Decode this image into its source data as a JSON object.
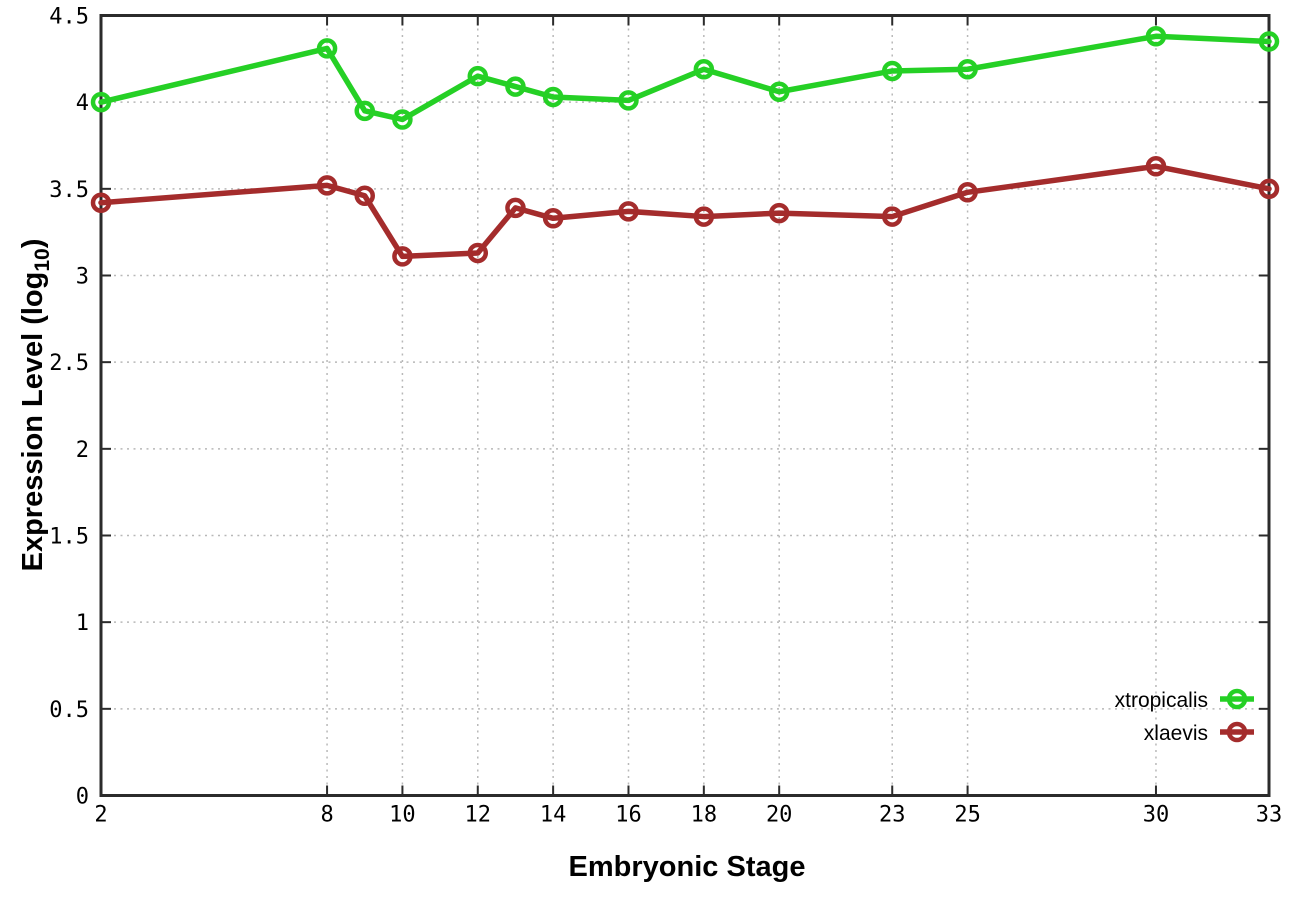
{
  "chart_data": {
    "type": "line",
    "xlabel": "Embryonic Stage",
    "ylabel": "Expression Level (log₁₀)",
    "ylabel_main": "Expression Level (log",
    "ylabel_sub": "10",
    "ylabel_end": ")",
    "x": [
      2,
      8,
      9,
      10,
      12,
      13,
      14,
      16,
      18,
      20,
      23,
      25,
      30,
      33
    ],
    "xticks": [
      2,
      8,
      10,
      12,
      14,
      16,
      18,
      20,
      23,
      25,
      30,
      33
    ],
    "yticks": [
      0,
      0.5,
      1,
      1.5,
      2,
      2.5,
      3,
      3.5,
      4,
      4.5
    ],
    "xlim": [
      2,
      33
    ],
    "ylim": [
      0,
      4.5
    ],
    "grid": true,
    "legend_position": "bottom-right",
    "series": [
      {
        "name": "xtropicalis",
        "color": "#25d025",
        "values": [
          4.0,
          4.31,
          3.95,
          3.9,
          4.15,
          4.09,
          4.03,
          4.01,
          4.19,
          4.06,
          4.18,
          4.19,
          4.38,
          4.35
        ]
      },
      {
        "name": "xlaevis",
        "color": "#a42c2c",
        "values": [
          3.42,
          3.52,
          3.46,
          3.11,
          3.13,
          3.39,
          3.33,
          3.37,
          3.34,
          3.36,
          3.34,
          3.48,
          3.63,
          3.5
        ]
      }
    ],
    "style": {
      "border_color": "#2b2b2b",
      "grid_color": "#b8b8b8",
      "text_color": "#000000",
      "background": "#ffffff"
    }
  }
}
